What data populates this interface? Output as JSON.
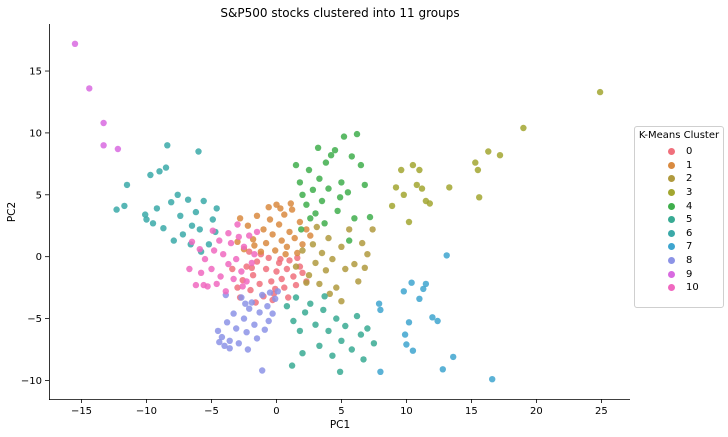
{
  "chart_data": {
    "type": "scatter",
    "title": "S&P500 stocks clustered into 11 groups",
    "xlabel": "PC1",
    "ylabel": "PC2",
    "xlim": [
      -17.5,
      27.2
    ],
    "ylim": [
      -11.5,
      18.8
    ],
    "xticks": [
      -15,
      -10,
      -5,
      0,
      5,
      10,
      15,
      20,
      25
    ],
    "yticks": [
      -10,
      -5,
      0,
      5,
      10,
      15
    ],
    "grid": false,
    "legend": {
      "title": "K-Means Cluster",
      "placement": "right"
    },
    "series": [
      {
        "name": "0",
        "color": "#f0707c",
        "points": [
          [
            -3.0,
            -2.5
          ],
          [
            -2.6,
            -1.9
          ],
          [
            -2.3,
            -0.8
          ],
          [
            -2.0,
            -2.7
          ],
          [
            -1.8,
            -1.5
          ],
          [
            -1.5,
            -0.4
          ],
          [
            -1.3,
            -2.2
          ],
          [
            -1.0,
            -3.2
          ],
          [
            -0.8,
            -1.0
          ],
          [
            -0.6,
            -0.1
          ],
          [
            -0.4,
            -2.0
          ],
          [
            -0.2,
            -3.0
          ],
          [
            0.0,
            -1.2
          ],
          [
            0.2,
            -0.5
          ],
          [
            0.4,
            -1.8
          ],
          [
            0.6,
            -2.5
          ],
          [
            0.8,
            -1.0
          ],
          [
            1.0,
            -0.3
          ],
          [
            1.3,
            -1.6
          ],
          [
            1.5,
            -2.3
          ],
          [
            1.8,
            -0.8
          ],
          [
            2.0,
            -1.3
          ],
          [
            2.3,
            -2.0
          ],
          [
            -3.4,
            -1.0
          ],
          [
            -2.8,
            -3.3
          ],
          [
            -1.6,
            -3.7
          ],
          [
            -0.3,
            -3.5
          ],
          [
            0.9,
            -3.3
          ],
          [
            -2.1,
            0.4
          ],
          [
            -1.2,
            0.2
          ],
          [
            0.3,
            -0.2
          ],
          [
            1.6,
            -0.1
          ],
          [
            -0.1,
            -2.6
          ],
          [
            -1.9,
            -0.9
          ]
        ]
      },
      {
        "name": "1",
        "color": "#d98a40",
        "points": [
          [
            -3.0,
            1.2
          ],
          [
            -2.5,
            0.6
          ],
          [
            -2.2,
            2.5
          ],
          [
            -1.8,
            1.4
          ],
          [
            -1.5,
            3.3
          ],
          [
            -1.2,
            0.4
          ],
          [
            -1.0,
            2.2
          ],
          [
            -0.8,
            1.1
          ],
          [
            -0.5,
            3.0
          ],
          [
            -0.3,
            1.8
          ],
          [
            -0.1,
            0.5
          ],
          [
            0.0,
            4.2
          ],
          [
            0.2,
            2.6
          ],
          [
            0.4,
            1.3
          ],
          [
            0.6,
            3.4
          ],
          [
            0.8,
            0.8
          ],
          [
            1.0,
            2.0
          ],
          [
            1.2,
            3.8
          ],
          [
            1.4,
            1.5
          ],
          [
            1.6,
            0.3
          ],
          [
            1.8,
            2.8
          ],
          [
            2.0,
            1.0
          ],
          [
            2.3,
            2.2
          ],
          [
            -2.8,
            3.1
          ],
          [
            -0.6,
            4.0
          ],
          [
            0.3,
            3.9
          ],
          [
            1.1,
            4.3
          ],
          [
            2.6,
            1.7
          ],
          [
            -1.7,
            0.9
          ],
          [
            0.7,
            0.2
          ]
        ]
      },
      {
        "name": "2",
        "color": "#b09a3e",
        "points": [
          [
            1.5,
            -0.8
          ],
          [
            2.0,
            0.5
          ],
          [
            2.5,
            -1.5
          ],
          [
            2.8,
            1.0
          ],
          [
            3.0,
            -0.5
          ],
          [
            3.3,
            -2.2
          ],
          [
            3.5,
            0.3
          ],
          [
            3.8,
            -1.1
          ],
          [
            4.0,
            1.5
          ],
          [
            4.3,
            -0.2
          ],
          [
            4.6,
            -2.5
          ],
          [
            5.0,
            0.8
          ],
          [
            5.3,
            -1.0
          ],
          [
            5.6,
            2.2
          ],
          [
            6.0,
            -0.6
          ],
          [
            6.3,
            -2.0
          ],
          [
            6.6,
            1.1
          ],
          [
            7.0,
            0.2
          ],
          [
            7.4,
            2.2
          ],
          [
            5.0,
            -3.6
          ],
          [
            3.1,
            2.4
          ],
          [
            4.1,
            -3.0
          ],
          [
            6.8,
            -0.9
          ],
          [
            2.3,
            -2.1
          ]
        ]
      },
      {
        "name": "3",
        "color": "#a2a630",
        "points": [
          [
            9.2,
            5.6
          ],
          [
            9.6,
            7.0
          ],
          [
            10.2,
            2.8
          ],
          [
            10.5,
            7.4
          ],
          [
            11.0,
            7.0
          ],
          [
            11.2,
            5.5
          ],
          [
            11.5,
            4.5
          ],
          [
            11.8,
            4.3
          ],
          [
            13.3,
            5.6
          ],
          [
            15.3,
            7.6
          ],
          [
            15.5,
            7.0
          ],
          [
            15.6,
            4.8
          ],
          [
            16.3,
            8.5
          ],
          [
            17.2,
            8.2
          ],
          [
            19.0,
            10.4
          ],
          [
            24.9,
            13.3
          ],
          [
            8.9,
            4.1
          ],
          [
            10.8,
            5.8
          ],
          [
            9.8,
            5.0
          ]
        ]
      },
      {
        "name": "4",
        "color": "#3fae4c",
        "points": [
          [
            1.5,
            7.4
          ],
          [
            1.8,
            6.0
          ],
          [
            2.0,
            5.0
          ],
          [
            2.3,
            4.2
          ],
          [
            2.5,
            7.0
          ],
          [
            2.8,
            5.4
          ],
          [
            3.0,
            3.5
          ],
          [
            3.2,
            8.8
          ],
          [
            3.3,
            6.3
          ],
          [
            3.5,
            4.5
          ],
          [
            3.8,
            7.6
          ],
          [
            4.0,
            5.5
          ],
          [
            4.2,
            8.2
          ],
          [
            4.5,
            8.6
          ],
          [
            4.7,
            3.7
          ],
          [
            5.0,
            6.0
          ],
          [
            5.2,
            9.7
          ],
          [
            5.5,
            5.2
          ],
          [
            5.8,
            8.1
          ],
          [
            6.0,
            3.1
          ],
          [
            6.2,
            9.9
          ],
          [
            6.5,
            7.4
          ],
          [
            6.8,
            5.8
          ],
          [
            7.2,
            3.2
          ],
          [
            2.6,
            3.1
          ],
          [
            3.7,
            2.7
          ],
          [
            5.6,
            1.3
          ],
          [
            4.9,
            4.8
          ],
          [
            1.9,
            2.2
          ]
        ]
      },
      {
        "name": "5",
        "color": "#38aa93",
        "points": [
          [
            0.8,
            -4.0
          ],
          [
            1.3,
            -5.2
          ],
          [
            1.8,
            -6.0
          ],
          [
            2.2,
            -4.5
          ],
          [
            2.6,
            -3.8
          ],
          [
            3.0,
            -5.5
          ],
          [
            3.3,
            -7.2
          ],
          [
            3.6,
            -4.3
          ],
          [
            4.0,
            -6.0
          ],
          [
            4.3,
            -8.0
          ],
          [
            4.6,
            -5.0
          ],
          [
            5.0,
            -6.8
          ],
          [
            5.3,
            -5.6
          ],
          [
            5.8,
            -7.5
          ],
          [
            6.2,
            -4.8
          ],
          [
            6.5,
            -6.3
          ],
          [
            7.0,
            -5.8
          ],
          [
            7.5,
            -7.0
          ],
          [
            2.0,
            -7.8
          ],
          [
            3.7,
            -3.2
          ],
          [
            1.5,
            -3.3
          ],
          [
            4.9,
            -9.3
          ],
          [
            6.7,
            -8.3
          ],
          [
            1.2,
            -8.8
          ]
        ]
      },
      {
        "name": "6",
        "color": "#3aa9a8",
        "points": [
          [
            -12.3,
            3.8
          ],
          [
            -11.7,
            4.1
          ],
          [
            -11.5,
            5.8
          ],
          [
            -10.0,
            3.0
          ],
          [
            -9.7,
            6.6
          ],
          [
            -9.5,
            2.7
          ],
          [
            -9.0,
            6.9
          ],
          [
            -8.7,
            2.3
          ],
          [
            -8.5,
            7.2
          ],
          [
            -8.4,
            9.0
          ],
          [
            -8.1,
            4.4
          ],
          [
            -7.6,
            5.0
          ],
          [
            -7.4,
            3.3
          ],
          [
            -7.2,
            1.8
          ],
          [
            -6.8,
            4.6
          ],
          [
            -6.5,
            2.5
          ],
          [
            -6.2,
            3.6
          ],
          [
            -6.0,
            8.5
          ],
          [
            -5.9,
            2.2
          ],
          [
            -5.6,
            4.5
          ],
          [
            -5.2,
            1.0
          ],
          [
            -4.9,
            3.0
          ],
          [
            -4.7,
            2.0
          ],
          [
            -7.9,
            1.3
          ],
          [
            -9.2,
            3.9
          ],
          [
            -6.6,
            1.0
          ],
          [
            -5.8,
            0.4
          ],
          [
            -4.6,
            3.9
          ],
          [
            -10.1,
            3.4
          ]
        ]
      },
      {
        "name": "7",
        "color": "#3ea5cf",
        "points": [
          [
            7.9,
            -3.8
          ],
          [
            8.0,
            -4.3
          ],
          [
            8.0,
            -9.3
          ],
          [
            9.8,
            -2.8
          ],
          [
            9.9,
            -6.3
          ],
          [
            10.0,
            -7.1
          ],
          [
            10.2,
            -5.3
          ],
          [
            10.4,
            -2.1
          ],
          [
            10.5,
            -7.6
          ],
          [
            11.3,
            -2.6
          ],
          [
            11.5,
            -2.2
          ],
          [
            12.0,
            -4.9
          ],
          [
            12.4,
            -5.2
          ],
          [
            12.8,
            -9.1
          ],
          [
            13.1,
            0.1
          ],
          [
            13.6,
            -8.1
          ],
          [
            16.6,
            -9.9
          ],
          [
            11.0,
            -3.4
          ]
        ]
      },
      {
        "name": "8",
        "color": "#8c93e6",
        "points": [
          [
            -4.5,
            -6.0
          ],
          [
            -4.2,
            -6.5
          ],
          [
            -4.0,
            -7.2
          ],
          [
            -3.8,
            -5.3
          ],
          [
            -3.6,
            -6.8
          ],
          [
            -3.3,
            -4.6
          ],
          [
            -3.1,
            -5.8
          ],
          [
            -2.9,
            -7.0
          ],
          [
            -2.7,
            -3.3
          ],
          [
            -2.5,
            -5.0
          ],
          [
            -2.3,
            -6.1
          ],
          [
            -2.1,
            -4.2
          ],
          [
            -1.9,
            -3.7
          ],
          [
            -1.7,
            -5.5
          ],
          [
            -1.5,
            -6.6
          ],
          [
            -1.3,
            -4.5
          ],
          [
            -1.1,
            -3.1
          ],
          [
            -0.9,
            -5.9
          ],
          [
            -0.7,
            -4.0
          ],
          [
            -0.5,
            -2.9
          ],
          [
            -0.3,
            -4.6
          ],
          [
            -0.1,
            -3.4
          ],
          [
            0.1,
            -2.8
          ],
          [
            -1.1,
            -9.2
          ],
          [
            -4.4,
            -6.9
          ],
          [
            -2.2,
            -7.5
          ],
          [
            -3.6,
            -7.4
          ],
          [
            -0.6,
            -5.2
          ],
          [
            -3.9,
            -3.1
          ],
          [
            -2.4,
            -3.8
          ]
        ]
      },
      {
        "name": "9",
        "color": "#d86ae0",
        "points": [
          [
            -15.5,
            17.2
          ],
          [
            -14.4,
            13.6
          ],
          [
            -13.3,
            10.8
          ],
          [
            -13.3,
            9.0
          ],
          [
            -12.2,
            8.7
          ]
        ]
      },
      {
        "name": "10",
        "color": "#f068c0",
        "points": [
          [
            -5.5,
            -0.2
          ],
          [
            -5.3,
            -2.4
          ],
          [
            -5.0,
            -1.0
          ],
          [
            -4.8,
            0.5
          ],
          [
            -4.6,
            -2.2
          ],
          [
            -4.3,
            -1.6
          ],
          [
            -4.1,
            0.2
          ],
          [
            -3.9,
            -2.8
          ],
          [
            -3.7,
            -0.6
          ],
          [
            -3.5,
            1.1
          ],
          [
            -3.3,
            -1.8
          ],
          [
            -3.1,
            -0.2
          ],
          [
            -2.9,
            1.6
          ],
          [
            -2.7,
            -1.2
          ],
          [
            -2.5,
            0.8
          ],
          [
            -2.3,
            -2.0
          ],
          [
            -2.1,
            1.7
          ],
          [
            -1.9,
            -0.5
          ],
          [
            -1.7,
            0.2
          ],
          [
            -1.5,
            2.0
          ],
          [
            -3.7,
            1.9
          ],
          [
            -4.4,
            1.3
          ],
          [
            -5.8,
            -1.3
          ],
          [
            -6.5,
            1.2
          ],
          [
            -6.2,
            -2.3
          ],
          [
            -5.6,
            -2.3
          ],
          [
            -6.7,
            -1.0
          ],
          [
            -5.9,
            0.6
          ],
          [
            -3.0,
            2.6
          ],
          [
            -4.9,
            2.1
          ],
          [
            -2.6,
            -2.4
          ]
        ]
      }
    ]
  }
}
